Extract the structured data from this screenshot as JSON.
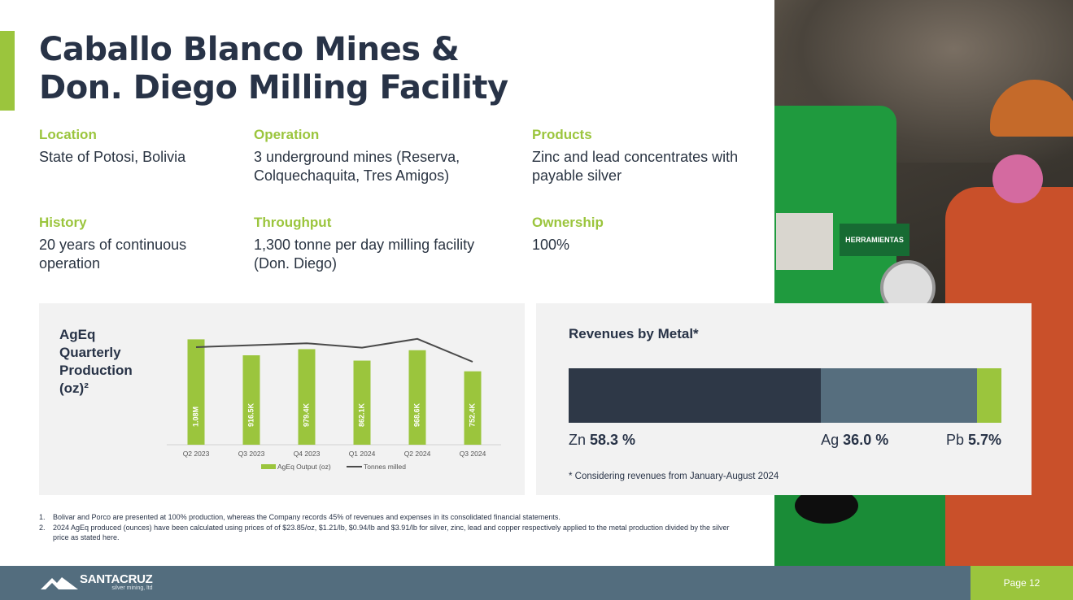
{
  "slide": {
    "title_line1": "Caballo Blanco Mines &",
    "title_line2": "Don. Diego Milling Facility",
    "accent_color": "#9bc53d",
    "dark_color": "#283347"
  },
  "info": {
    "location": {
      "label": "Location",
      "value": "State of Potosi, Bolivia"
    },
    "operation": {
      "label": "Operation",
      "value": "3 underground mines (Reserva, Colquechaquita, Tres Amigos)"
    },
    "products": {
      "label": "Products",
      "value": "Zinc and lead concentrates with payable silver"
    },
    "history": {
      "label": "History",
      "value": "20 years of continuous operation"
    },
    "throughput": {
      "label": "Throughput",
      "value": "1,300 tonne per day milling facility (Don. Diego)"
    },
    "ownership": {
      "label": "Ownership",
      "value": "100%"
    }
  },
  "photo": {
    "sign_text": "HERRAMIENTAS",
    "icon": "mine-worker-photo"
  },
  "chart_data": [
    {
      "type": "bar",
      "title": "AgEq Quarterly Production (oz)²",
      "title_lines": [
        "AgEq",
        "Quarterly",
        "Production",
        "(oz)²"
      ],
      "categories": [
        "Q2 2023",
        "Q3 2023",
        "Q4 2023",
        "Q1 2024",
        "Q2 2024",
        "Q3 2024"
      ],
      "series": [
        {
          "name": "AgEq Output (oz)",
          "type": "bar",
          "values": [
            1080000,
            916500,
            979400,
            862100,
            968600,
            752400
          ],
          "labels": [
            "1.08M",
            "916.5K",
            "979.4K",
            "862.1K",
            "968.6K",
            "752.4K"
          ],
          "color": "#9bc53d"
        },
        {
          "name": "Tonnes milled",
          "type": "line",
          "values": [
            1000,
            1020,
            1040,
            995,
            1085,
            850
          ],
          "color": "#4a4a4a"
        }
      ],
      "ylim": [
        0,
        1200000
      ],
      "grid": false,
      "legend": "bottom"
    },
    {
      "type": "bar",
      "orientation": "stacked-horizontal",
      "title": "Revenues by Metal*",
      "categories": [
        "Zn",
        "Ag",
        "Pb"
      ],
      "values": [
        58.3,
        36.0,
        5.7
      ],
      "value_labels": [
        "58.3 %",
        "36.0 %",
        "5.7%"
      ],
      "colors": [
        "#2e3847",
        "#566e7e",
        "#9bc53d"
      ],
      "note": "* Considering revenues from January-August 2024"
    }
  ],
  "footnotes": [
    {
      "num": "1.",
      "text": "Bolivar and Porco are presented at 100% production, whereas the Company records 45% of revenues and expenses in its consolidated financial statements."
    },
    {
      "num": "2.",
      "text": "2024 AgEq produced (ounces) have been calculated using prices of of $23.85/oz, $1.21/lb, $0.94/lb and $3.91/lb for silver, zinc, lead and copper respectively applied to the metal production divided by the silver price as stated here."
    }
  ],
  "footer": {
    "logo_text": "SANTACRUZ",
    "logo_sub": "silver mining, ltd",
    "page_label": "Page 12",
    "bar_color": "#536d7e"
  }
}
